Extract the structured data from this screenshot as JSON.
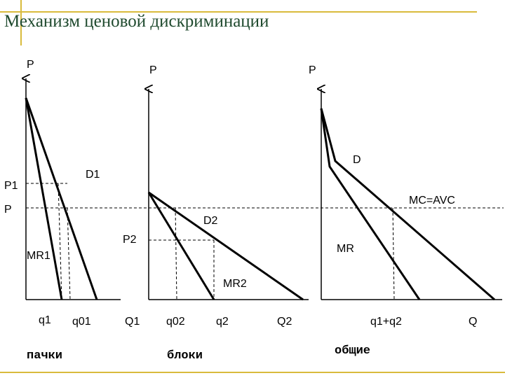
{
  "title": "Механизм ценовой дискриминации",
  "panels": [
    {
      "y_axis": "P",
      "price_label": "P1",
      "demand": "D1",
      "marginal_revenue": "MR1",
      "quantities": [
        "q1",
        "q01"
      ],
      "x_axis": "Q1",
      "caption": "пачки"
    },
    {
      "y_axis": "P",
      "price_label": "P2",
      "demand": "D2",
      "marginal_revenue": "MR2",
      "quantities": [
        "q02",
        "q2"
      ],
      "x_axis": "Q2",
      "caption": "блоки"
    },
    {
      "y_axis": "P",
      "demand": "D",
      "marginal_revenue": "MR",
      "quantities": [
        "q1+q2"
      ],
      "x_axis": "Q",
      "caption": "общие"
    }
  ],
  "cost_curve": {
    "label": "MC=AVC",
    "price_label": "P"
  }
}
